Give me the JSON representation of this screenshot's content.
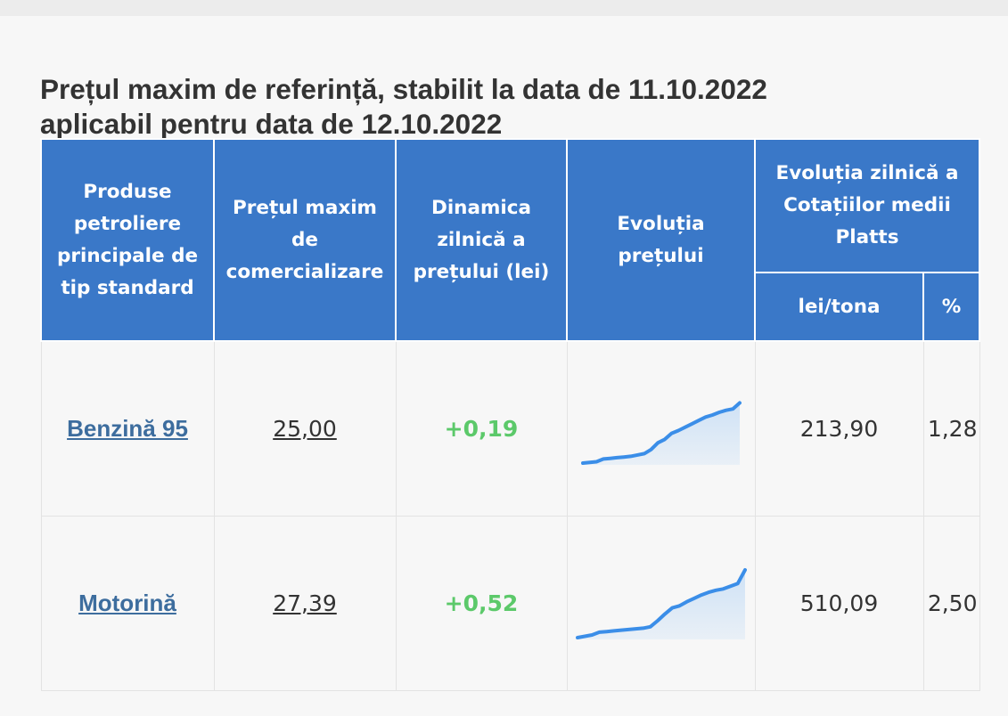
{
  "title_line1": "Prețul maxim de referință, stabilit la data de 11.10.2022",
  "title_line2": "aplicabil pentru data de 12.10.2022",
  "headers": {
    "product": "Produse petroliere principale de tip standard",
    "price": "Prețul maxim de comercializare",
    "dynamics": "Dinamica zilnică a prețului (lei)",
    "evolution": "Evoluția prețului",
    "platts": "Evoluția zilnică a Cotațiilor medii Platts",
    "platts_lei": "lei/tona",
    "platts_pct": "%"
  },
  "rows": [
    {
      "product": "Benzină 95",
      "price": "25,00",
      "delta": "+0,19",
      "platts_lei": "213,90",
      "platts_pct": "1,28",
      "spark": [
        0.0,
        0.01,
        0.02,
        0.06,
        0.07,
        0.08,
        0.09,
        0.1,
        0.12,
        0.14,
        0.2,
        0.3,
        0.35,
        0.44,
        0.48,
        0.53,
        0.58,
        0.63,
        0.68,
        0.71,
        0.75,
        0.78,
        0.8,
        0.89
      ]
    },
    {
      "product": "Motorină",
      "price": "27,39",
      "delta": "+0,52",
      "platts_lei": "510,09",
      "platts_pct": "2,50",
      "spark": [
        0.0,
        0.02,
        0.04,
        0.08,
        0.09,
        0.1,
        0.11,
        0.12,
        0.13,
        0.14,
        0.16,
        0.25,
        0.35,
        0.44,
        0.47,
        0.53,
        0.58,
        0.63,
        0.67,
        0.7,
        0.72,
        0.76,
        0.8,
        1.0
      ]
    }
  ],
  "colors": {
    "header_bg": "#3a78c8",
    "link": "#3d6d9e",
    "delta_green": "#5cc96a",
    "spark_line": "#3b8ee8",
    "spark_fill": "#cfe2f6"
  }
}
